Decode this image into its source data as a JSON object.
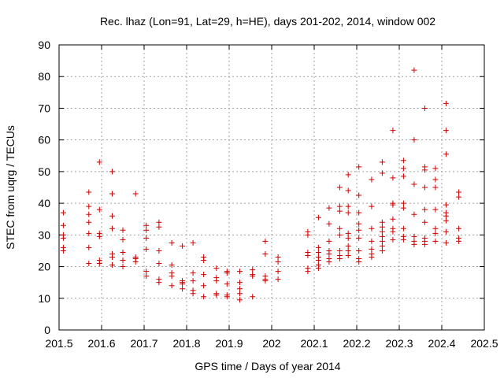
{
  "chart_data": {
    "type": "scatter",
    "title": "Rec. lhaz (Lon=91, Lat=29, h=HE), days 201-202, 2014, window 002",
    "xlabel": "GPS time / Days of year 2014",
    "ylabel": "STEC from uqrg / TECUs",
    "xlim": [
      201.5,
      202.5
    ],
    "ylim": [
      0,
      90
    ],
    "xticks": [
      "201.5",
      "201.6",
      "201.7",
      "201.8",
      "201.9",
      "202",
      "202.1",
      "202.2",
      "202.3",
      "202.4",
      "202.5"
    ],
    "yticks": [
      "0",
      "10",
      "20",
      "30",
      "40",
      "50",
      "60",
      "70",
      "80",
      "90"
    ],
    "grid": true,
    "marker": "plus",
    "color": "#d00000",
    "points": [
      [
        201.51,
        37
      ],
      [
        201.51,
        33
      ],
      [
        201.51,
        30
      ],
      [
        201.51,
        29
      ],
      [
        201.51,
        26
      ],
      [
        201.51,
        25
      ],
      [
        201.57,
        43.5
      ],
      [
        201.57,
        39
      ],
      [
        201.57,
        36.5
      ],
      [
        201.57,
        34
      ],
      [
        201.57,
        30.5
      ],
      [
        201.57,
        26
      ],
      [
        201.57,
        21
      ],
      [
        201.595,
        53
      ],
      [
        201.595,
        38
      ],
      [
        201.595,
        30.5
      ],
      [
        201.595,
        29.5
      ],
      [
        201.595,
        22
      ],
      [
        201.595,
        21
      ],
      [
        201.625,
        50
      ],
      [
        201.625,
        43
      ],
      [
        201.625,
        36
      ],
      [
        201.625,
        32
      ],
      [
        201.625,
        24
      ],
      [
        201.625,
        23
      ],
      [
        201.625,
        20.5
      ],
      [
        201.65,
        31.5
      ],
      [
        201.65,
        28.5
      ],
      [
        201.65,
        24.5
      ],
      [
        201.65,
        22
      ],
      [
        201.65,
        20
      ],
      [
        201.68,
        43
      ],
      [
        201.68,
        23
      ],
      [
        201.68,
        22.5
      ],
      [
        201.68,
        21.5
      ],
      [
        201.705,
        33
      ],
      [
        201.705,
        31.5
      ],
      [
        201.705,
        29
      ],
      [
        201.705,
        25.5
      ],
      [
        201.705,
        18.5
      ],
      [
        201.705,
        17
      ],
      [
        201.735,
        34
      ],
      [
        201.735,
        32.5
      ],
      [
        201.735,
        25
      ],
      [
        201.735,
        21
      ],
      [
        201.735,
        16
      ],
      [
        201.735,
        15
      ],
      [
        201.765,
        27.5
      ],
      [
        201.765,
        20.5
      ],
      [
        201.765,
        18
      ],
      [
        201.765,
        17
      ],
      [
        201.765,
        14
      ],
      [
        201.79,
        26.5
      ],
      [
        201.79,
        15.5
      ],
      [
        201.79,
        15
      ],
      [
        201.79,
        14.5
      ],
      [
        201.79,
        13
      ],
      [
        201.815,
        27.5
      ],
      [
        201.815,
        18
      ],
      [
        201.815,
        15.5
      ],
      [
        201.815,
        12.5
      ],
      [
        201.815,
        11.5
      ],
      [
        201.84,
        23
      ],
      [
        201.84,
        22
      ],
      [
        201.84,
        17.5
      ],
      [
        201.84,
        14
      ],
      [
        201.84,
        10.5
      ],
      [
        201.87,
        19.5
      ],
      [
        201.87,
        16.5
      ],
      [
        201.87,
        15.5
      ],
      [
        201.87,
        11.5
      ],
      [
        201.87,
        11
      ],
      [
        201.895,
        18.5
      ],
      [
        201.895,
        18
      ],
      [
        201.895,
        14.5
      ],
      [
        201.895,
        11
      ],
      [
        201.895,
        10.5
      ],
      [
        201.925,
        18.5
      ],
      [
        201.925,
        15
      ],
      [
        201.925,
        13
      ],
      [
        201.925,
        11.5
      ],
      [
        201.925,
        9.5
      ],
      [
        201.955,
        19
      ],
      [
        201.955,
        17.5
      ],
      [
        201.955,
        17
      ],
      [
        201.955,
        10.5
      ],
      [
        201.985,
        28
      ],
      [
        201.985,
        24
      ],
      [
        201.985,
        17
      ],
      [
        201.985,
        16
      ],
      [
        201.985,
        15.5
      ],
      [
        202.015,
        23
      ],
      [
        202.015,
        21.5
      ],
      [
        202.015,
        18.5
      ],
      [
        202.015,
        16
      ],
      [
        202.085,
        31
      ],
      [
        202.085,
        30
      ],
      [
        202.085,
        24.5
      ],
      [
        202.085,
        23.5
      ],
      [
        202.085,
        19.5
      ],
      [
        202.085,
        18.5
      ],
      [
        202.11,
        35.5
      ],
      [
        202.11,
        26
      ],
      [
        202.11,
        24.5
      ],
      [
        202.11,
        23
      ],
      [
        202.11,
        22
      ],
      [
        202.11,
        20.5
      ],
      [
        202.11,
        19.5
      ],
      [
        202.135,
        38.5
      ],
      [
        202.135,
        33.5
      ],
      [
        202.135,
        28
      ],
      [
        202.135,
        25
      ],
      [
        202.135,
        24
      ],
      [
        202.135,
        22.5
      ],
      [
        202.135,
        21.5
      ],
      [
        202.16,
        45
      ],
      [
        202.16,
        39
      ],
      [
        202.16,
        37.5
      ],
      [
        202.16,
        32
      ],
      [
        202.16,
        30
      ],
      [
        202.16,
        25
      ],
      [
        202.16,
        23.5
      ],
      [
        202.16,
        22.5
      ],
      [
        202.18,
        49
      ],
      [
        202.18,
        44
      ],
      [
        202.18,
        39
      ],
      [
        202.18,
        37
      ],
      [
        202.18,
        30.5
      ],
      [
        202.18,
        29
      ],
      [
        202.18,
        26.5
      ],
      [
        202.18,
        25
      ],
      [
        202.18,
        23.5
      ],
      [
        202.205,
        51.5
      ],
      [
        202.205,
        42.5
      ],
      [
        202.205,
        37
      ],
      [
        202.205,
        33.5
      ],
      [
        202.205,
        31.5
      ],
      [
        202.205,
        29
      ],
      [
        202.205,
        25
      ],
      [
        202.205,
        22.5
      ],
      [
        202.205,
        21.5
      ],
      [
        202.235,
        47.5
      ],
      [
        202.235,
        39
      ],
      [
        202.235,
        32
      ],
      [
        202.235,
        28
      ],
      [
        202.235,
        25.5
      ],
      [
        202.235,
        24
      ],
      [
        202.235,
        23
      ],
      [
        202.26,
        53
      ],
      [
        202.26,
        49.5
      ],
      [
        202.26,
        34
      ],
      [
        202.26,
        32.5
      ],
      [
        202.26,
        31
      ],
      [
        202.26,
        29.5
      ],
      [
        202.26,
        28
      ],
      [
        202.26,
        26.5
      ],
      [
        202.26,
        25
      ],
      [
        202.285,
        63
      ],
      [
        202.285,
        48
      ],
      [
        202.285,
        40
      ],
      [
        202.285,
        39.5
      ],
      [
        202.285,
        35
      ],
      [
        202.285,
        32
      ],
      [
        202.285,
        31
      ],
      [
        202.285,
        28.5
      ],
      [
        202.31,
        53.5
      ],
      [
        202.31,
        51
      ],
      [
        202.31,
        48.5
      ],
      [
        202.31,
        40
      ],
      [
        202.31,
        38.5
      ],
      [
        202.31,
        32
      ],
      [
        202.31,
        29.5
      ],
      [
        202.31,
        28.5
      ],
      [
        202.335,
        82
      ],
      [
        202.335,
        60
      ],
      [
        202.335,
        46
      ],
      [
        202.335,
        36.5
      ],
      [
        202.335,
        29.5
      ],
      [
        202.335,
        28
      ],
      [
        202.335,
        27
      ],
      [
        202.36,
        70
      ],
      [
        202.36,
        51.5
      ],
      [
        202.36,
        50.5
      ],
      [
        202.36,
        45
      ],
      [
        202.36,
        38
      ],
      [
        202.36,
        34
      ],
      [
        202.36,
        29
      ],
      [
        202.36,
        28
      ],
      [
        202.36,
        27
      ],
      [
        202.385,
        51
      ],
      [
        202.385,
        47.5
      ],
      [
        202.385,
        45
      ],
      [
        202.385,
        38
      ],
      [
        202.385,
        32
      ],
      [
        202.385,
        30.5
      ],
      [
        202.385,
        28
      ],
      [
        202.41,
        71.5
      ],
      [
        202.41,
        63
      ],
      [
        202.41,
        55.5
      ],
      [
        202.41,
        39.5
      ],
      [
        202.41,
        37
      ],
      [
        202.41,
        36
      ],
      [
        202.41,
        34.5
      ],
      [
        202.41,
        31
      ],
      [
        202.41,
        27.5
      ],
      [
        202.44,
        43.5
      ],
      [
        202.44,
        42
      ],
      [
        202.44,
        32
      ],
      [
        202.44,
        29
      ],
      [
        202.44,
        28
      ]
    ]
  }
}
